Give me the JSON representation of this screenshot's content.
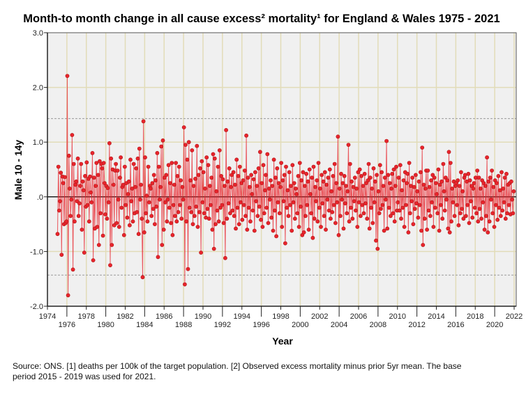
{
  "chart_data": {
    "type": "line",
    "title": "Month-to month change in all cause excess² mortality¹  for England & Wales 1975 - 2021",
    "xlabel": "Year",
    "ylabel": "Male 10 - 14y",
    "xlim": [
      1974,
      2022
    ],
    "ylim": [
      -2.0,
      3.0
    ],
    "x_ticks": [
      "1974",
      "1976",
      "1978",
      "1980",
      "1982",
      "1984",
      "1986",
      "1988",
      "1990",
      "1992",
      "1994",
      "1996",
      "1998",
      "2000",
      "2002",
      "2004",
      "2006",
      "2008",
      "2010",
      "2012",
      "2014",
      "2016",
      "2018",
      "2020",
      "2022"
    ],
    "y_ticks": [
      {
        "v": 3,
        "label": "3.0"
      },
      {
        "v": 2,
        "label": "2.0"
      },
      {
        "v": 1,
        "label": "1.0"
      },
      {
        "v": 0,
        "label": ".0"
      },
      {
        "v": -1,
        "label": "-1.0"
      },
      {
        "v": -2,
        "label": "-2.0"
      }
    ],
    "grid": true,
    "reference_lines": [
      1.43,
      -1.43
    ],
    "start_year": 1975,
    "frequency": "monthly",
    "series": [
      {
        "name": "Male 10 - 14y",
        "color": "#e8242c",
        "values": [
          -0.68,
          0.55,
          -0.25,
          -0.08,
          0.44,
          -1.06,
          0.37,
          0.25,
          -0.5,
          0.36,
          -0.48,
          -0.45,
          2.21,
          -1.8,
          0.75,
          0.15,
          -0.35,
          -0.05,
          1.13,
          -1.33,
          0.6,
          -0.45,
          0.22,
          0.28,
          -0.08,
          0.7,
          -0.35,
          -0.12,
          0.2,
          0.6,
          -0.6,
          0.28,
          0.12,
          -1.02,
          0.38,
          -0.18,
          0.63,
          -0.15,
          0.33,
          -0.45,
          0.37,
          0.08,
          -0.1,
          0.8,
          -1.16,
          0.35,
          -0.58,
          0.2,
          0.62,
          -0.55,
          0.4,
          -0.88,
          0.65,
          -0.3,
          0.6,
          0.52,
          -0.71,
          0.62,
          0.25,
          -0.32,
          0.2,
          -0.4,
          0.16,
          -0.1,
          0.98,
          -1.25,
          0.7,
          -0.88,
          0.5,
          0.22,
          -0.52,
          0.48,
          0.6,
          -0.48,
          0.48,
          -0.05,
          -0.55,
          0.35,
          0.72,
          -0.2,
          0.18,
          0.22,
          -0.7,
          0.55,
          -0.15,
          0.25,
          -0.38,
          0.05,
          0.28,
          -0.52,
          0.68,
          -0.08,
          0.15,
          -0.45,
          0.6,
          -0.3,
          0.18,
          0.52,
          -0.28,
          0.7,
          -0.68,
          0.88,
          -0.05,
          0.22,
          -0.4,
          -1.47,
          1.38,
          -0.65,
          0.72,
          -0.3,
          0.02,
          -0.45,
          0.55,
          -0.1,
          0.2,
          0.15,
          -0.35,
          0.25,
          -0.22,
          0.4,
          -0.5,
          0.3,
          -0.18,
          0.8,
          -1.1,
          0.55,
          -0.05,
          0.18,
          0.92,
          -0.88,
          1.03,
          -0.6,
          0.35,
          -0.1,
          0.4,
          -0.45,
          -0.05,
          0.58,
          -0.2,
          0.25,
          -0.48,
          0.62,
          -0.7,
          -0.15,
          0.22,
          -0.35,
          0.62,
          -0.45,
          0.38,
          -0.28,
          0.55,
          -0.15,
          0.3,
          -0.4,
          0.18,
          -0.05,
          1.27,
          -1.6,
          0.95,
          -0.45,
          0.68,
          -1.32,
          1.0,
          -0.2,
          0.3,
          -0.28,
          0.85,
          -0.5,
          0.2,
          -0.35,
          0.33,
          -0.18,
          0.93,
          -0.55,
          0.4,
          -0.28,
          0.52,
          -1.02,
          0.65,
          -0.1,
          0.45,
          -0.3,
          0.15,
          -0.38,
          0.72,
          -0.22,
          0.58,
          -0.4,
          0.2,
          -0.15,
          0.35,
          -0.6,
          0.78,
          -0.95,
          0.7,
          -0.5,
          0.1,
          -0.25,
          0.55,
          -0.45,
          0.85,
          -0.2,
          0.38,
          -0.15,
          0.32,
          -0.48,
          0.2,
          -1.12,
          1.22,
          -0.4,
          0.28,
          -0.12,
          0.52,
          -0.3,
          0.18,
          0.4,
          -0.25,
          0.45,
          -0.35,
          0.22,
          -0.58,
          0.68,
          -0.2,
          0.38,
          -0.5,
          0.55,
          -0.1,
          0.25,
          -0.42,
          0.3,
          -0.15,
          0.48,
          -0.35,
          1.12,
          -0.6,
          0.35,
          -0.2,
          0.18,
          -0.45,
          0.4,
          0.05,
          -0.25,
          0.32,
          -0.62,
          0.45,
          -0.08,
          0.2,
          -0.35,
          0.52,
          -0.18,
          0.82,
          -0.42,
          0.25,
          -0.55,
          0.58,
          -0.3,
          0.12,
          0.4,
          -0.2,
          0.78,
          -0.48,
          0.15,
          -0.05,
          0.3,
          -0.38,
          0.2,
          -0.62,
          0.68,
          -0.25,
          0.35,
          -0.72,
          0.52,
          -0.1,
          0.25,
          -0.3,
          0.18,
          0.62,
          -0.55,
          0.3,
          -0.08,
          0.4,
          -0.85,
          0.55,
          -0.2,
          0.12,
          -0.35,
          0.45,
          -0.15,
          0.2,
          -0.62,
          0.58,
          -0.1,
          0.25,
          -0.4,
          0.15,
          0.05,
          -0.3,
          0.38,
          -0.55,
          0.62,
          -0.18,
          0.3,
          -0.7,
          0.45,
          -0.65,
          0.2,
          -0.35,
          0.42,
          -0.15,
          0.28,
          -0.6,
          0.5,
          0.05,
          -0.3,
          0.35,
          -0.75,
          0.55,
          -0.4,
          0.18,
          -0.08,
          0.3,
          -0.45,
          0.62,
          -0.2,
          0.15,
          -0.55,
          0.4,
          -0.12,
          0.28,
          -0.35,
          0.45,
          -0.6,
          0.22,
          -0.05,
          0.35,
          -0.25,
          0.5,
          -0.4,
          0.1,
          -0.28,
          0.38,
          -0.15,
          0.6,
          -0.48,
          0.25,
          -0.1,
          1.1,
          -0.7,
          0.15,
          -0.35,
          0.42,
          -0.05,
          0.25,
          -0.58,
          0.38,
          -0.12,
          0.2,
          -0.3,
          0.1,
          0.95,
          -0.45,
          0.6,
          -0.2,
          0.28,
          -0.4,
          0.18,
          -0.08,
          0.35,
          -0.25,
          0.15,
          -0.55,
          0.45,
          -0.1,
          0.5,
          -0.35,
          0.38,
          -0.15,
          0.2,
          -0.3,
          0.42,
          -0.12,
          0.25,
          -0.4,
          0.3,
          0.6,
          -0.58,
          0.35,
          -0.2,
          0.15,
          -0.48,
          0.52,
          -0.1,
          0.28,
          -0.8,
          0.4,
          -0.95,
          0.1,
          -0.3,
          0.58,
          -0.22,
          0.45,
          -0.15,
          0.2,
          -0.62,
          0.35,
          -0.05,
          1.02,
          -0.58,
          0.4,
          -0.2,
          0.25,
          -0.35,
          0.15,
          0.42,
          -0.3,
          0.5,
          -0.45,
          0.2,
          0.55,
          -0.25,
          -0.1,
          0.35,
          -0.25,
          0.58,
          -0.4,
          0.12,
          -0.2,
          0.3,
          -0.55,
          0.45,
          -0.15,
          0.25,
          0.42,
          -0.65,
          0.62,
          -0.3,
          0.2,
          -0.08,
          0.35,
          -0.5,
          0.18,
          -0.22,
          0.4,
          -0.12,
          0.1,
          -0.38,
          0.28,
          -0.15,
          0.45,
          -0.62,
          0.9,
          -0.88,
          0.22,
          -0.4,
          0.15,
          0.48,
          -0.6,
          0.48,
          -0.25,
          0.18,
          -0.35,
          0.3,
          -0.1,
          0.4,
          -0.55,
          0.35,
          -0.2,
          0.25,
          0.05,
          -0.3,
          0.5,
          -0.62,
          0.22,
          -0.15,
          0.28,
          -0.4,
          0.6,
          0.1,
          -0.25,
          0.35,
          -0.05,
          0.3,
          -0.58,
          0.82,
          -0.65,
          0.62,
          -0.45,
          0.15,
          -0.1,
          0.28,
          -0.35,
          0.2,
          0.25,
          -0.15,
          0.3,
          -0.52,
          0.2,
          -0.3,
          0.45,
          -0.22,
          0.1,
          -0.4,
          0.35,
          0.4,
          -0.35,
          0.28,
          -0.15,
          0.42,
          -0.48,
          0.3,
          -0.08,
          0.2,
          -0.38,
          0.15,
          0.25,
          -0.2,
          0.35,
          -0.3,
          0.48,
          -0.45,
          0.35,
          -0.22,
          0.15,
          -0.4,
          0.3,
          -0.1,
          0.25,
          -0.6,
          0.2,
          -0.35,
          0.72,
          -0.65,
          0.28,
          -0.45,
          0.35,
          -0.05,
          0.48,
          -0.3,
          0.18,
          -0.55,
          0.3,
          -0.15,
          0.25,
          -0.42,
          0.38,
          -0.2,
          0.12,
          -0.35,
          0.45,
          -0.25,
          0.15,
          -0.1,
          0.35,
          -0.4,
          0.42,
          -0.3,
          0.22,
          -0.15,
          0.25,
          -0.32,
          0.28,
          -0.05,
          -0.3,
          0.1
        ]
      }
    ]
  },
  "footnote": {
    "line1": "Source: ONS. [1] deaths per 100k of the target population. [2] Observed excess mortality minus prior 5yr mean. The base",
    "line2": "period 2015 - 2019 was used for 2021."
  }
}
